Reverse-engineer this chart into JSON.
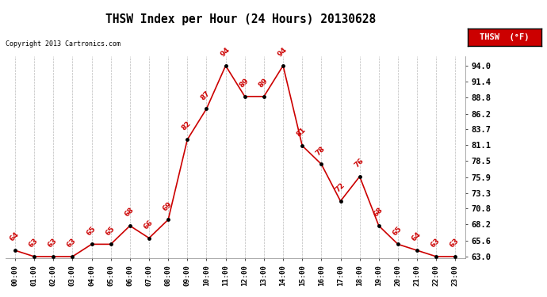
{
  "title": "THSW Index per Hour (24 Hours) 20130628",
  "copyright": "Copyright 2013 Cartronics.com",
  "legend_label": "THSW  (°F)",
  "hours": [
    "00:00",
    "01:00",
    "02:00",
    "03:00",
    "04:00",
    "05:00",
    "06:00",
    "07:00",
    "08:00",
    "09:00",
    "10:00",
    "11:00",
    "12:00",
    "13:00",
    "14:00",
    "15:00",
    "16:00",
    "17:00",
    "18:00",
    "19:00",
    "20:00",
    "21:00",
    "22:00",
    "23:00"
  ],
  "values": [
    64,
    63,
    63,
    63,
    65,
    65,
    68,
    66,
    69,
    82,
    87,
    94,
    89,
    89,
    94,
    81,
    78,
    72,
    76,
    68,
    65,
    64,
    63,
    63
  ],
  "ylim_min": 63.0,
  "ylim_max": 94.0,
  "yticks": [
    63.0,
    65.6,
    68.2,
    70.8,
    73.3,
    75.9,
    78.5,
    81.1,
    83.7,
    86.2,
    88.8,
    91.4,
    94.0
  ],
  "line_color": "#cc0000",
  "marker_color": "#000000",
  "label_color": "#cc0000",
  "grid_color": "#bbbbbb",
  "bg_color": "#ffffff",
  "legend_bg": "#cc0000",
  "legend_text_color": "#ffffff",
  "title_color": "#000000",
  "copyright_color": "#000000"
}
